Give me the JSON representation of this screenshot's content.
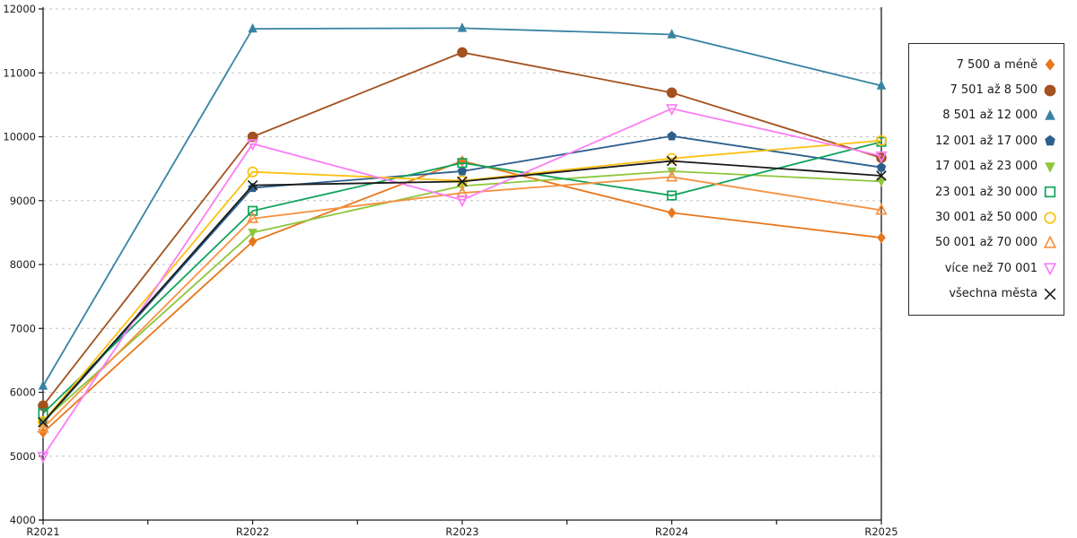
{
  "chart_data": {
    "type": "line",
    "title": "",
    "xlabel": "",
    "ylabel": "",
    "categories": [
      "R2021",
      "R2022",
      "R2023",
      "R2024",
      "R2025"
    ],
    "series": [
      {
        "name": "7 500 a méně",
        "color": "#e8761b",
        "marker": "diamond",
        "fill": true,
        "values": [
          5370,
          8360,
          9620,
          8810,
          8420
        ]
      },
      {
        "name": "7 501 až 8 500",
        "color": "#a3511e",
        "marker": "circle",
        "fill": true,
        "values": [
          5790,
          10000,
          11320,
          10690,
          9670
        ]
      },
      {
        "name": "8 501 až 12 000",
        "color": "#3783a3",
        "marker": "triangle-up",
        "fill": true,
        "values": [
          6100,
          11690,
          11700,
          11600,
          10800
        ]
      },
      {
        "name": "12 001 až 17 000",
        "color": "#2c5f8c",
        "marker": "pentagon",
        "fill": true,
        "values": [
          5520,
          9200,
          9460,
          10010,
          9520
        ]
      },
      {
        "name": "17 001 až 23 000",
        "color": "#8ec63d",
        "marker": "triangle-down",
        "fill": true,
        "values": [
          5550,
          8500,
          9230,
          9460,
          9300
        ]
      },
      {
        "name": "23 001 až 30 000",
        "color": "#10a35c",
        "marker": "square",
        "fill": false,
        "values": [
          5670,
          8840,
          9590,
          9080,
          9920
        ]
      },
      {
        "name": "30 001 až 50 000",
        "color": "#fdc010",
        "marker": "circle",
        "fill": false,
        "values": [
          5540,
          9450,
          9310,
          9660,
          9940
        ]
      },
      {
        "name": "50 001 až 70 000",
        "color": "#f69240",
        "marker": "triangle-up",
        "fill": false,
        "values": [
          5440,
          8720,
          9120,
          9370,
          8850
        ]
      },
      {
        "name": "více než 70 001",
        "color": "#fb7ef5",
        "marker": "triangle-down",
        "fill": false,
        "values": [
          5000,
          9890,
          9010,
          10440,
          9700
        ]
      },
      {
        "name": "všechna města",
        "color": "#1a1a1a",
        "marker": "x-mark",
        "fill": false,
        "values": [
          5530,
          9240,
          9300,
          9620,
          9390
        ]
      }
    ],
    "ylim": [
      4000,
      12000
    ],
    "y_ticks": [
      4000,
      5000,
      6000,
      7000,
      8000,
      9000,
      10000,
      11000,
      12000
    ],
    "x_minor_ticks_between": 1,
    "grid": "horizontal-dashed",
    "grid_color": "#c3c3c3",
    "axis_color": "#1a1a1a",
    "legend_position": "right",
    "legend_marker_side": "right"
  }
}
